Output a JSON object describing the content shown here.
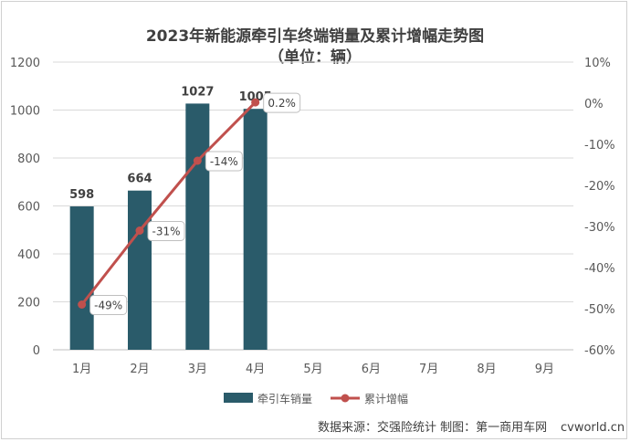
{
  "chart_data": {
    "type": "bar+line",
    "title": "2023年新能源牵引车终端销量及累计增幅走势图",
    "subtitle": "（单位：辆）",
    "categories": [
      "1月",
      "2月",
      "3月",
      "4月",
      "5月",
      "6月",
      "7月",
      "8月",
      "9月"
    ],
    "series": [
      {
        "name": "牵引车销量",
        "type": "bar",
        "axis": "left",
        "color": "#2a5b6a",
        "values": [
          598,
          664,
          1027,
          1005,
          null,
          null,
          null,
          null,
          null
        ],
        "labels": [
          "598",
          "664",
          "1027",
          "1005"
        ]
      },
      {
        "name": "累计增幅",
        "type": "line",
        "axis": "right",
        "color": "#c0504d",
        "values": [
          -49,
          -31,
          -14,
          0.2,
          null,
          null,
          null,
          null,
          null
        ],
        "labels": [
          "-49%",
          "-31%",
          "-14%",
          "0.2%"
        ]
      }
    ],
    "y_left": {
      "min": 0,
      "max": 1200,
      "ticks": [
        "0",
        "200",
        "400",
        "600",
        "800",
        "1000",
        "1200"
      ]
    },
    "y_right": {
      "min": -60,
      "max": 10,
      "ticks": [
        "-60%",
        "-50%",
        "-40%",
        "-30%",
        "-20%",
        "-10%",
        "0%",
        "10%"
      ]
    },
    "grid": true,
    "legend_position": "bottom"
  },
  "source_text": "数据来源：交强险统计  制图：第一商用车网",
  "watermark": "cvworld.cn"
}
